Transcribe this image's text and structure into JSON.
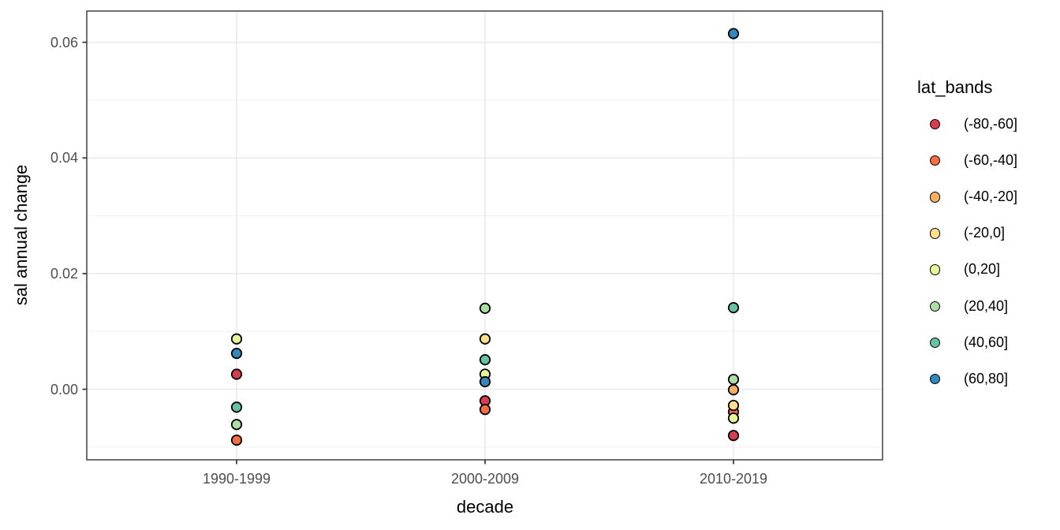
{
  "chart_data": {
    "type": "scatter",
    "title": "",
    "xlabel": "decade",
    "ylabel": "sal annual change",
    "categories": [
      "1990-1999",
      "2000-2009",
      "2010-2019"
    ],
    "y_ticks": [
      {
        "value": 0.0,
        "label": "0.00"
      },
      {
        "value": 0.02,
        "label": "0.02"
      },
      {
        "value": 0.04,
        "label": "0.04"
      },
      {
        "value": 0.06,
        "label": "0.06"
      }
    ],
    "y_minor_ticks": [
      -0.01,
      0.01,
      0.03,
      0.05
    ],
    "ylim": [
      -0.0122,
      0.0654
    ],
    "grid": true,
    "legend_position": "right",
    "legend": {
      "title": "lat_bands",
      "items": [
        {
          "label": "(-80,-60]",
          "color": "#d53e4f"
        },
        {
          "label": "(-60,-40]",
          "color": "#f46d43"
        },
        {
          "label": "(-40,-20]",
          "color": "#fdae61"
        },
        {
          "label": "(-20,0]",
          "color": "#fee08b"
        },
        {
          "label": "(0,20]",
          "color": "#e6f598"
        },
        {
          "label": "(20,40]",
          "color": "#abdda4"
        },
        {
          "label": "(40,60]",
          "color": "#66c2a5"
        },
        {
          "label": "(60,80]",
          "color": "#3288bd"
        }
      ]
    },
    "series": [
      {
        "name": "(-80,-60]",
        "color": "#d53e4f",
        "values": [
          0.0026,
          -0.002,
          -0.008
        ]
      },
      {
        "name": "(-60,-40]",
        "color": "#f46d43",
        "values": [
          -0.0088,
          -0.0035,
          -0.0039
        ]
      },
      {
        "name": "(-40,-20]",
        "color": "#fdae61",
        "values": [
          null,
          null,
          -0.0001
        ]
      },
      {
        "name": "(-20,0]",
        "color": "#fee08b",
        "values": [
          null,
          0.0087,
          -0.0028
        ]
      },
      {
        "name": "(0,20]",
        "color": "#e6f598",
        "values": [
          0.0087,
          0.0026,
          -0.005
        ]
      },
      {
        "name": "(20,40]",
        "color": "#abdda4",
        "values": [
          -0.0061,
          0.014,
          0.0017
        ]
      },
      {
        "name": "(40,60]",
        "color": "#66c2a5",
        "values": [
          -0.0031,
          0.0051,
          0.0141
        ]
      },
      {
        "name": "(60,80]",
        "color": "#3288bd",
        "values": [
          0.0062,
          0.0013,
          0.0615
        ]
      }
    ],
    "colors": {
      "panel_border": "#333333",
      "grid_major": "#ebebeb",
      "grid_minor": "#f0f0f0",
      "tick_label": "#4d4d4d",
      "point_stroke": "#000000",
      "background": "#ffffff"
    }
  }
}
